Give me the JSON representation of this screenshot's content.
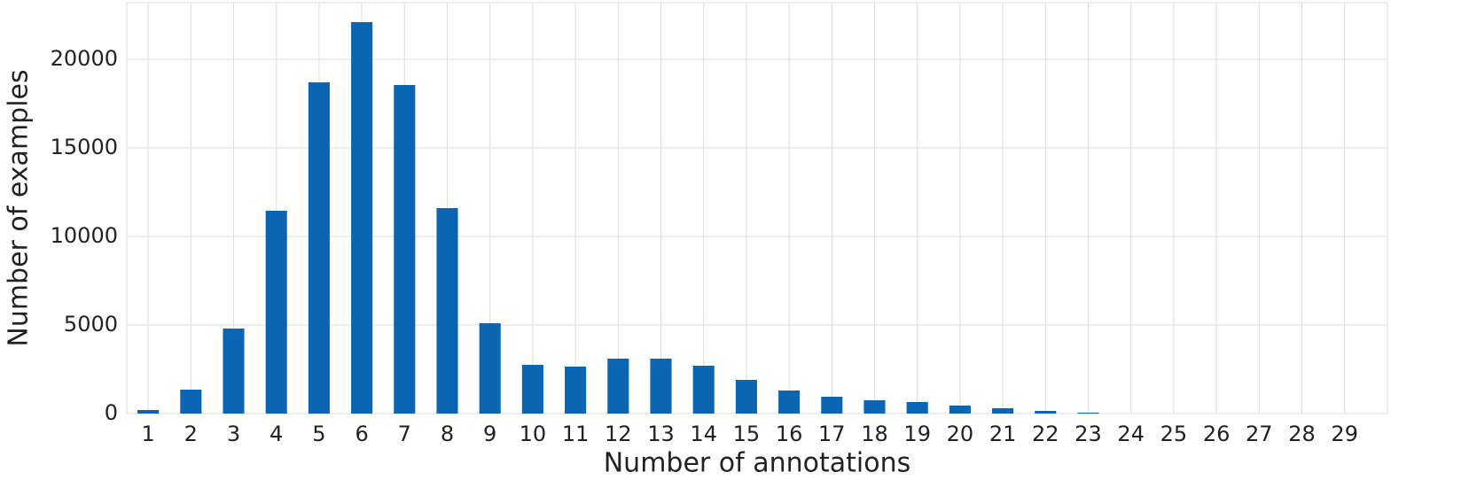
{
  "chart_data": {
    "type": "bar",
    "x_label": "Number of annotations",
    "y_label": "Number of examples",
    "categories": [
      "1",
      "2",
      "3",
      "4",
      "5",
      "6",
      "7",
      "8",
      "9",
      "10",
      "11",
      "12",
      "13",
      "14",
      "15",
      "16",
      "17",
      "18",
      "19",
      "20",
      "21",
      "22",
      "23",
      "24",
      "25",
      "26",
      "27",
      "28",
      "29"
    ],
    "values": [
      200,
      1350,
      4800,
      11450,
      18700,
      22100,
      18550,
      11600,
      5100,
      2750,
      2650,
      3100,
      3100,
      2700,
      1900,
      1300,
      950,
      750,
      650,
      450,
      300,
      150,
      50,
      0,
      0,
      0,
      0,
      0,
      0
    ],
    "color": "#0a66b2",
    "ylim": [
      0,
      23200
    ],
    "yticks": [
      0,
      5000,
      10000,
      15000,
      20000
    ],
    "grid": true
  }
}
